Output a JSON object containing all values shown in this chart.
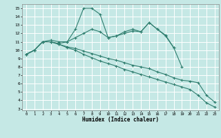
{
  "xlabel": "Humidex (Indice chaleur)",
  "bg_color": "#c5e8e5",
  "grid_color": "#ffffff",
  "line_color": "#2e7d6e",
  "xlim": [
    -0.5,
    23.5
  ],
  "ylim": [
    2.8,
    15.5
  ],
  "xticks": [
    0,
    1,
    2,
    3,
    4,
    5,
    6,
    7,
    8,
    9,
    10,
    11,
    12,
    13,
    14,
    15,
    16,
    17,
    18,
    19,
    20,
    21,
    22,
    23
  ],
  "yticks": [
    3,
    4,
    5,
    6,
    7,
    8,
    9,
    10,
    11,
    12,
    13,
    14,
    15
  ],
  "s1_x": [
    0,
    1,
    2,
    3,
    4,
    5,
    6,
    7,
    8,
    9,
    10,
    11,
    12,
    13,
    14,
    15,
    16,
    17,
    18,
    19
  ],
  "s1_y": [
    9.5,
    10.0,
    11.0,
    11.2,
    11.0,
    11.0,
    12.5,
    15.0,
    15.0,
    14.3,
    11.5,
    11.7,
    12.2,
    12.5,
    12.2,
    13.3,
    12.5,
    11.7,
    10.3,
    8.0
  ],
  "s2_x": [
    0,
    1,
    2,
    3,
    4,
    5,
    6,
    7,
    8,
    9,
    10,
    11,
    12,
    13,
    14,
    15,
    16,
    17,
    18
  ],
  "s2_y": [
    9.5,
    10.0,
    11.0,
    11.0,
    10.8,
    11.0,
    11.5,
    12.0,
    12.5,
    12.2,
    11.5,
    11.7,
    12.0,
    12.3,
    12.2,
    13.3,
    12.5,
    11.8,
    10.3
  ],
  "s3_x": [
    0,
    1,
    2,
    3,
    4,
    5,
    6,
    7,
    8,
    9,
    10,
    11,
    12,
    13,
    14,
    15,
    16,
    17,
    18,
    19,
    20,
    21,
    22,
    23
  ],
  "s3_y": [
    9.5,
    10.0,
    11.0,
    11.0,
    10.7,
    10.4,
    10.2,
    9.9,
    9.6,
    9.3,
    9.0,
    8.8,
    8.5,
    8.2,
    8.0,
    7.8,
    7.4,
    7.1,
    6.7,
    6.4,
    6.3,
    6.1,
    4.6,
    3.8
  ],
  "s4_x": [
    0,
    1,
    2,
    3,
    4,
    5,
    6,
    7,
    8,
    9,
    10,
    11,
    12,
    13,
    14,
    15,
    16,
    17,
    18,
    19,
    20,
    21,
    22,
    23
  ],
  "s4_y": [
    9.5,
    10.0,
    11.0,
    11.0,
    10.7,
    10.3,
    10.0,
    9.5,
    9.1,
    8.7,
    8.4,
    8.1,
    7.7,
    7.4,
    7.1,
    6.8,
    6.5,
    6.2,
    5.9,
    5.6,
    5.3,
    4.6,
    3.7,
    3.2
  ]
}
